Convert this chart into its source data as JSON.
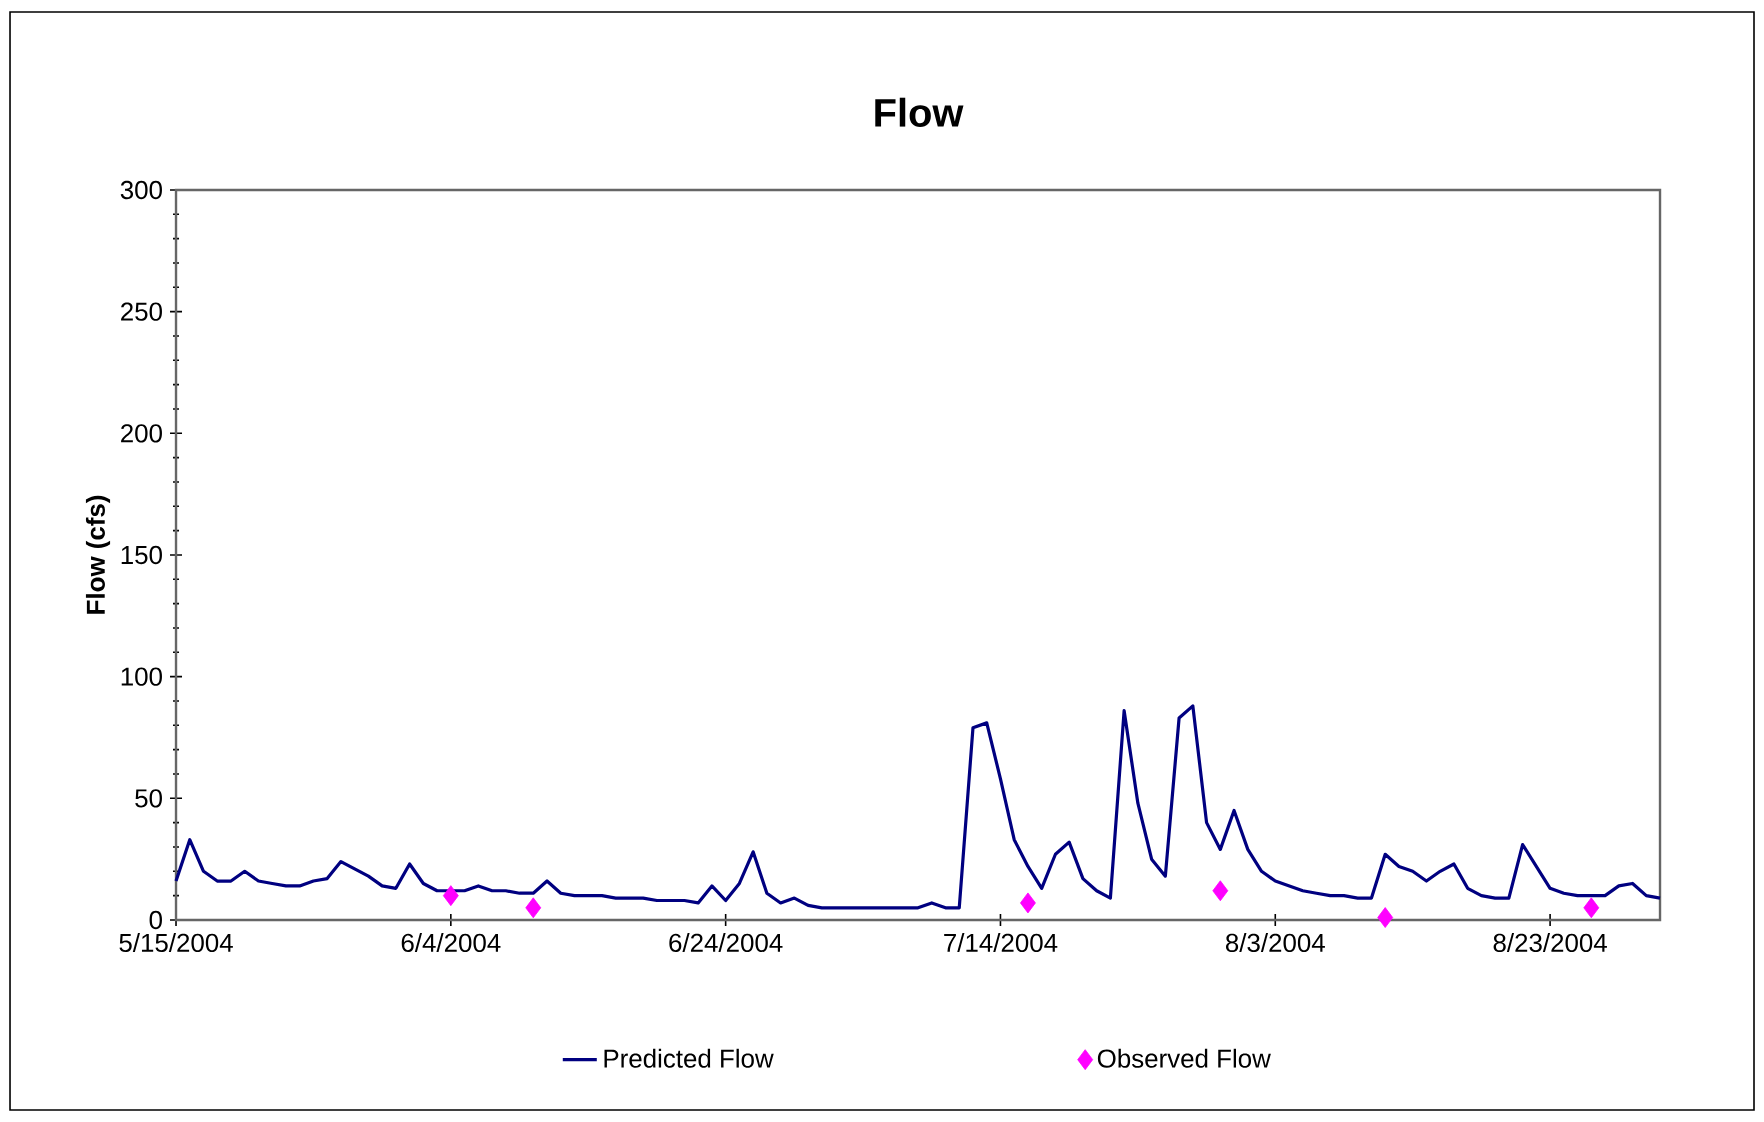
{
  "chart_data": {
    "type": "line",
    "title": "Flow",
    "ylabel": "Flow (cfs)",
    "xlim": [
      "2004-05-15",
      "2004-08-31"
    ],
    "ylim": [
      0,
      300
    ],
    "xticks": [
      {
        "value": "2004-05-15",
        "label": "5/15/2004"
      },
      {
        "value": "2004-06-04",
        "label": "6/4/2004"
      },
      {
        "value": "2004-06-24",
        "label": "6/24/2004"
      },
      {
        "value": "2004-07-14",
        "label": "7/14/2004"
      },
      {
        "value": "2004-08-03",
        "label": "8/3/2004"
      },
      {
        "value": "2004-08-23",
        "label": "8/23/2004"
      }
    ],
    "yticks": [
      0,
      50,
      100,
      150,
      200,
      250,
      300
    ],
    "grid": false,
    "legend": "bottom",
    "series": [
      {
        "name": "Predicted Flow",
        "marker": "none",
        "line_style": "solid",
        "color": "#000080",
        "x": [
          "2004-05-15",
          "2004-05-16",
          "2004-05-17",
          "2004-05-18",
          "2004-05-19",
          "2004-05-20",
          "2004-05-21",
          "2004-05-22",
          "2004-05-23",
          "2004-05-24",
          "2004-05-25",
          "2004-05-26",
          "2004-05-27",
          "2004-05-28",
          "2004-05-29",
          "2004-05-30",
          "2004-05-31",
          "2004-06-01",
          "2004-06-02",
          "2004-06-03",
          "2004-06-04",
          "2004-06-05",
          "2004-06-06",
          "2004-06-07",
          "2004-06-08",
          "2004-06-09",
          "2004-06-10",
          "2004-06-11",
          "2004-06-12",
          "2004-06-13",
          "2004-06-14",
          "2004-06-15",
          "2004-06-16",
          "2004-06-17",
          "2004-06-18",
          "2004-06-19",
          "2004-06-20",
          "2004-06-21",
          "2004-06-22",
          "2004-06-23",
          "2004-06-24",
          "2004-06-25",
          "2004-06-26",
          "2004-06-27",
          "2004-06-28",
          "2004-06-29",
          "2004-06-30",
          "2004-07-01",
          "2004-07-02",
          "2004-07-03",
          "2004-07-04",
          "2004-07-05",
          "2004-07-06",
          "2004-07-07",
          "2004-07-08",
          "2004-07-09",
          "2004-07-10",
          "2004-07-11",
          "2004-07-12",
          "2004-07-13",
          "2004-07-14",
          "2004-07-15",
          "2004-07-16",
          "2004-07-17",
          "2004-07-18",
          "2004-07-19",
          "2004-07-20",
          "2004-07-21",
          "2004-07-22",
          "2004-07-23",
          "2004-07-24",
          "2004-07-25",
          "2004-07-26",
          "2004-07-27",
          "2004-07-28",
          "2004-07-29",
          "2004-07-30",
          "2004-07-31",
          "2004-08-01",
          "2004-08-02",
          "2004-08-03",
          "2004-08-04",
          "2004-08-05",
          "2004-08-06",
          "2004-08-07",
          "2004-08-08",
          "2004-08-09",
          "2004-08-10",
          "2004-08-11",
          "2004-08-12",
          "2004-08-13",
          "2004-08-14",
          "2004-08-15",
          "2004-08-16",
          "2004-08-17",
          "2004-08-18",
          "2004-08-19",
          "2004-08-20",
          "2004-08-21",
          "2004-08-22",
          "2004-08-23",
          "2004-08-24",
          "2004-08-25",
          "2004-08-26",
          "2004-08-27",
          "2004-08-28",
          "2004-08-29",
          "2004-08-30",
          "2004-08-31"
        ],
        "values": [
          16,
          33,
          20,
          16,
          16,
          20,
          16,
          15,
          14,
          14,
          16,
          17,
          24,
          21,
          18,
          14,
          13,
          23,
          15,
          12,
          12,
          12,
          14,
          12,
          12,
          11,
          11,
          16,
          11,
          10,
          10,
          10,
          9,
          9,
          9,
          8,
          8,
          8,
          7,
          14,
          8,
          15,
          28,
          11,
          7,
          9,
          6,
          5,
          5,
          5,
          5,
          5,
          5,
          5,
          5,
          7,
          5,
          5,
          79,
          81,
          58,
          33,
          22,
          13,
          27,
          32,
          17,
          12,
          9,
          86,
          48,
          25,
          18,
          83,
          88,
          40,
          29,
          45,
          29,
          20,
          16,
          14,
          12,
          11,
          10,
          10,
          9,
          9,
          27,
          22,
          20,
          16,
          20,
          23,
          13,
          10,
          9,
          9,
          31,
          22,
          13,
          11,
          10,
          10,
          10,
          14,
          15,
          10,
          9
        ]
      },
      {
        "name": "Observed Flow",
        "type": "scatter",
        "marker": "diamond",
        "color": "#ff00ff",
        "x": [
          "2004-06-04",
          "2004-06-10",
          "2004-07-16",
          "2004-07-30",
          "2004-08-11",
          "2004-08-26"
        ],
        "values": [
          10,
          5,
          7,
          12,
          1,
          5
        ]
      }
    ]
  }
}
